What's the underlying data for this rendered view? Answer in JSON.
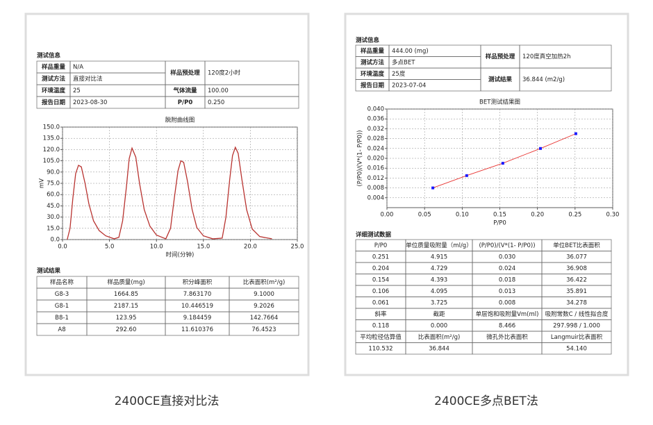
{
  "left": {
    "info_title": "测试信息",
    "info": {
      "left": [
        [
          "样品重量",
          "N/A"
        ],
        [
          "测试方法",
          "直接对比法"
        ],
        [
          "环境温度",
          "25"
        ],
        [
          "报告日期",
          "2023-08-30"
        ]
      ],
      "right": [
        [
          "样品预处理",
          "120度2小时"
        ],
        [
          "气体流量",
          "100.00"
        ],
        [
          "P/P0",
          "0.250"
        ]
      ]
    },
    "chart": {
      "type": "line",
      "title": "脱附曲线图",
      "x_label": "时间(分钟)",
      "y_label": "mV",
      "grid": true,
      "xlim": [
        0,
        25
      ],
      "ylim": [
        0,
        150
      ],
      "xticks": [
        {
          "value": 0,
          "label": "0.0"
        },
        {
          "value": 5,
          "label": "5.0"
        },
        {
          "value": 10,
          "label": "10.0"
        },
        {
          "value": 15,
          "label": "15.0"
        },
        {
          "value": 20,
          "label": "20.0"
        },
        {
          "value": 25,
          "label": "25.0"
        }
      ],
      "yticks": [
        {
          "value": 0,
          "label": "0.0"
        },
        {
          "value": 15,
          "label": "15.0"
        },
        {
          "value": 30,
          "label": "30.0"
        },
        {
          "value": 45,
          "label": "45.0"
        },
        {
          "value": 60,
          "label": "60.0"
        },
        {
          "value": 75,
          "label": "75.0"
        },
        {
          "value": 90,
          "label": "90.0"
        },
        {
          "value": 105,
          "label": "105.0"
        },
        {
          "value": 120,
          "label": "120.0"
        },
        {
          "value": 135,
          "label": "135.0"
        },
        {
          "value": 150,
          "label": "150.0"
        }
      ],
      "series": [
        {
          "color": "#b8322f",
          "x": [
            0.5,
            0.8,
            1.1,
            1.4,
            1.7,
            2.0,
            2.4,
            2.8,
            3.3,
            3.9,
            4.6,
            5.5,
            6.0,
            6.4,
            6.8,
            7.1,
            7.4,
            7.8,
            8.2,
            8.7,
            9.3,
            10.0,
            11.0,
            11.5,
            11.9,
            12.3,
            12.6,
            12.9,
            13.3,
            13.8,
            14.3,
            15.0,
            16.0,
            17.0,
            17.4,
            17.8,
            18.1,
            18.4,
            18.7,
            19.1,
            19.6,
            20.2,
            21.0,
            22.3
          ],
          "values": [
            0,
            15,
            55,
            88,
            99,
            97,
            75,
            48,
            25,
            12,
            5,
            1,
            3,
            25,
            70,
            108,
            122,
            110,
            75,
            40,
            18,
            6,
            1,
            15,
            55,
            92,
            105,
            103,
            78,
            40,
            16,
            5,
            1,
            2,
            30,
            80,
            112,
            123,
            115,
            80,
            40,
            14,
            4,
            1
          ]
        }
      ]
    },
    "results_title": "测试结果",
    "results": {
      "rows": [
        [
          "样品名称",
          "样品质量(mg)",
          "积分峰面积",
          "比表面积(m²/g)"
        ],
        [
          "G8-3",
          "1664.85",
          "7.863170",
          "9.1000"
        ],
        [
          "G8-1",
          "2187.15",
          "10.446519",
          "9.2026"
        ],
        [
          "B8-1",
          "123.95",
          "9.184459",
          "142.7664"
        ],
        [
          "A8",
          "292.60",
          "11.610376",
          "76.4523"
        ]
      ]
    },
    "caption": "2400CE直接对比法"
  },
  "right": {
    "info_title": "测试信息",
    "info": {
      "left": [
        [
          "样品重量",
          "444.00 (mg)"
        ],
        [
          "测试方法",
          "多点BET"
        ],
        [
          "环境温度",
          "25度"
        ],
        [
          "报告日期",
          "2023-07-04"
        ]
      ],
      "right": [
        [
          "样品预处理",
          "120度真空加热2h"
        ],
        [
          "测试结果",
          "36.844 (m2/g)"
        ]
      ]
    },
    "chart": {
      "type": "scatter",
      "title": "BET测试结果图",
      "x_label": "P/P0",
      "y_label": "(P/P0)/(V*(1- P/P0))",
      "grid": true,
      "xlim": [
        0,
        0.3
      ],
      "ylim": [
        0,
        0.04
      ],
      "xticks": [
        {
          "value": 0,
          "label": "0.00"
        },
        0.05,
        {
          "value": 0.1,
          "label": "0.10"
        },
        0.15,
        {
          "value": 0.2,
          "label": "0.20"
        },
        0.25,
        {
          "value": 0.3,
          "label": "0.30"
        }
      ],
      "yticks": [
        0.004,
        0.008,
        0.012,
        0.016,
        {
          "value": 0.02,
          "label": "0.020"
        },
        0.024,
        0.028,
        0.032,
        0.036,
        {
          "value": 0.04,
          "label": "0.040"
        }
      ],
      "series": [
        {
          "color": "#1a1aff",
          "line_color": "#e8322f",
          "x": [
            0.061,
            0.106,
            0.154,
            0.204,
            0.251
          ],
          "values": [
            0.008,
            0.013,
            0.018,
            0.024,
            0.03
          ]
        }
      ]
    },
    "details_title": "详细测试数据",
    "details": {
      "rows": [
        [
          "P/P0",
          "单位质量吸附量（ml/g）",
          "(P/P0)/(V*(1- P/P0))",
          "单位BET比表面积"
        ],
        [
          "0.251",
          "4.915",
          "0.030",
          "36.077"
        ],
        [
          "0.204",
          "4.729",
          "0.024",
          "36.908"
        ],
        [
          "0.154",
          "4.393",
          "0.018",
          "36.422"
        ],
        [
          "0.106",
          "4.095",
          "0.013",
          "35.891"
        ],
        [
          "0.061",
          "3.725",
          "0.008",
          "34.278"
        ],
        [
          "斜率",
          "截距",
          "单层饱和吸附量Vm(ml)",
          "吸附常数C / 线性拟合度"
        ],
        [
          "0.118",
          "0.000",
          "8.466",
          "297.998 / 1.000"
        ],
        [
          "平均粒径估算值",
          "比表面积(m²/g)",
          "微孔外比表面积",
          "Langmuir比表面积"
        ],
        [
          "110.532",
          "36.844",
          null,
          "54.140"
        ]
      ]
    },
    "caption": "2400CE多点BET法"
  }
}
